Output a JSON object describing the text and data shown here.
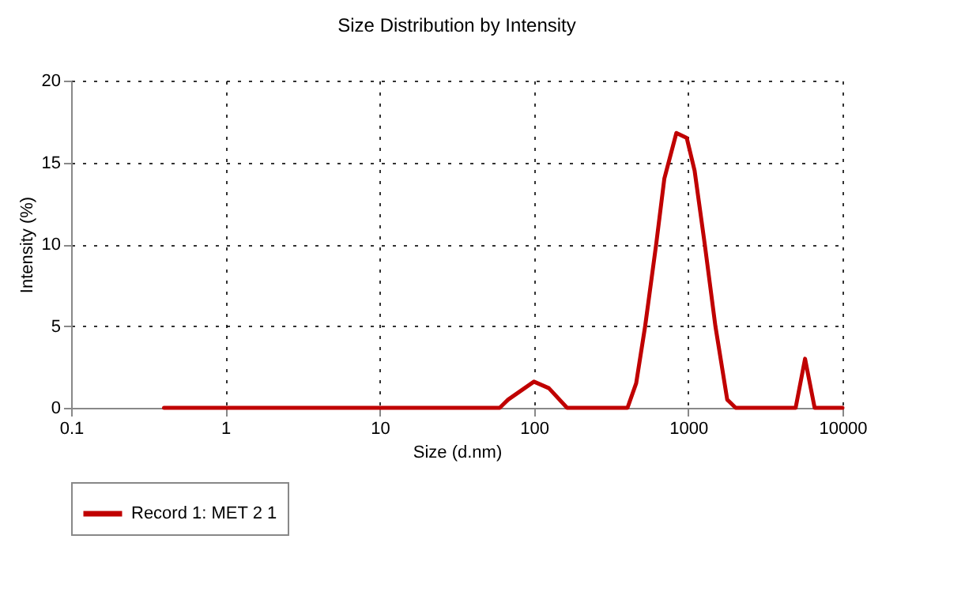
{
  "chart_data": {
    "type": "line",
    "title": "Size Distribution by Intensity",
    "xlabel": "Size (d.nm)",
    "ylabel": "Intensity (%)",
    "log": "x",
    "xlim": [
      0.1,
      10000
    ],
    "xticks": [
      0.1,
      1,
      10,
      100,
      1000,
      10000
    ],
    "ylim": [
      0,
      20
    ],
    "yticks": [
      0,
      5,
      10,
      15,
      20
    ],
    "grid": true,
    "legend": "bottom",
    "marker": "none",
    "line_style": "solid",
    "series": [
      {
        "name": "Record 1: MET 2 1",
        "color": "#c00000",
        "x": [
          0.4,
          60,
          68,
          100,
          125,
          164,
          404,
          460,
          526,
          620,
          700,
          838,
          978,
          1100,
          1280,
          1500,
          1790,
          2030,
          4970,
          5720,
          6600,
          10000
        ],
        "values": [
          0,
          0,
          0.5,
          1.6,
          1.2,
          0,
          0,
          1.5,
          5,
          10,
          14,
          16.8,
          16.5,
          14.5,
          10,
          5,
          0.5,
          0,
          0,
          3,
          0,
          0
        ]
      }
    ]
  }
}
